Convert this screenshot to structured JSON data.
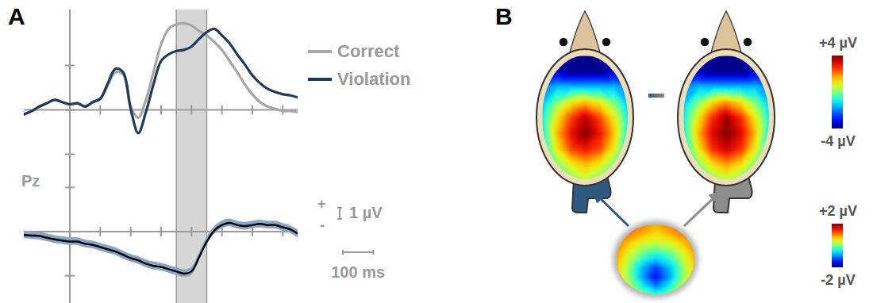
{
  "chart_data": [
    {
      "type": "line",
      "panel": "A",
      "legend": "right",
      "tick_labels": false,
      "x": [
        -150,
        -125,
        -100,
        -75,
        -50,
        -25,
        0,
        25,
        50,
        75,
        100,
        125,
        150,
        175,
        200,
        225,
        250,
        275,
        300,
        325,
        350,
        375,
        400,
        425,
        450,
        475,
        500,
        525,
        550,
        575,
        600,
        625,
        650,
        675,
        700,
        725,
        750
      ],
      "xlim": [
        -150,
        750
      ],
      "ylim": [
        -5.5,
        9
      ],
      "xticks": [
        0,
        100,
        200,
        300,
        400,
        500,
        600,
        700
      ],
      "yticks": [
        -4,
        0,
        4
      ],
      "window": [
        350,
        450
      ],
      "series": [
        {
          "name": "Correct",
          "color": "#a6a6a6",
          "values": [
            -0.4,
            -0.1,
            0.3,
            0.6,
            0.9,
            0.7,
            0.5,
            0.6,
            0.3,
            0.7,
            1.0,
            2.2,
            3.4,
            3.2,
            0.3,
            -0.7,
            0.9,
            3.4,
            5.9,
            7.3,
            7.7,
            7.8,
            7.6,
            7.1,
            6.7,
            6.1,
            5.4,
            4.4,
            3.4,
            2.3,
            1.4,
            0.7,
            0.3,
            0.1,
            -0.1,
            -0.1,
            -0.2
          ]
        },
        {
          "name": "Violation",
          "color": "#1f3a5a",
          "values": [
            -0.4,
            -0.1,
            0.3,
            0.6,
            0.9,
            0.7,
            0.5,
            0.6,
            0.3,
            0.7,
            1.0,
            2.4,
            3.7,
            3.4,
            0.1,
            -2.1,
            -0.2,
            2.3,
            4.4,
            5.0,
            5.3,
            5.4,
            5.7,
            6.4,
            7.0,
            7.3,
            6.7,
            6.0,
            5.0,
            4.1,
            3.1,
            2.4,
            1.9,
            1.6,
            1.4,
            1.3,
            1.1
          ]
        }
      ]
    },
    {
      "type": "line",
      "title": "Pz",
      "tick_labels": false,
      "x": [
        -150,
        -125,
        -100,
        -75,
        -50,
        -25,
        0,
        25,
        50,
        75,
        100,
        125,
        150,
        175,
        200,
        225,
        250,
        275,
        300,
        325,
        350,
        375,
        400,
        425,
        450,
        475,
        500,
        525,
        550,
        575,
        600,
        625,
        650,
        675,
        700,
        725,
        750
      ],
      "xlim": [
        -150,
        750
      ],
      "ylim": [
        -6.5,
        5.5
      ],
      "xticks": [
        0,
        100,
        200,
        300,
        400,
        500,
        600,
        700
      ],
      "yticks": [
        -4,
        0,
        4
      ],
      "window": [
        350,
        450
      ],
      "scale_bar": {
        "y": 1,
        "y_label": "1 µV",
        "x": 100,
        "x_label": "100 ms",
        "plus": "+",
        "minus": "-"
      },
      "series": [
        {
          "color": "#000000",
          "values": [
            -0.3,
            -0.35,
            -0.4,
            -0.55,
            -0.7,
            -0.8,
            -0.9,
            -0.9,
            -1.1,
            -1.2,
            -1.4,
            -1.6,
            -1.8,
            -2.1,
            -2.4,
            -2.6,
            -2.9,
            -3.1,
            -3.2,
            -3.4,
            -3.6,
            -3.8,
            -3.6,
            -2.3,
            -0.9,
            0.1,
            0.6,
            0.8,
            0.6,
            0.5,
            0.6,
            0.7,
            0.6,
            0.6,
            0.4,
            0.2,
            -0.2
          ],
          "error": [
            0.35,
            0.35,
            0.35,
            0.35,
            0.35,
            0.35,
            0.35,
            0.35,
            0.35,
            0.35,
            0.35,
            0.35,
            0.35,
            0.35,
            0.35,
            0.35,
            0.35,
            0.35,
            0.35,
            0.35,
            0.35,
            0.35,
            0.35,
            0.35,
            0.35,
            0.35,
            0.35,
            0.35,
            0.35,
            0.35,
            0.35,
            0.35,
            0.35,
            0.35,
            0.35,
            0.35,
            0.35
          ]
        }
      ]
    },
    {
      "type": "heatmap",
      "panel": "B",
      "color": "#2f5a80",
      "zlim": [
        -4,
        4
      ],
      "cells": [
        [
          -4,
          -4,
          -4,
          -4,
          -4,
          -4,
          -4
        ],
        [
          -3,
          -3.5,
          -4,
          -4,
          -4,
          -3.5,
          -3
        ],
        [
          -2,
          -1.5,
          -1.5,
          -1.5,
          -1.5,
          -1.5,
          -2
        ],
        [
          -1.5,
          0,
          1,
          1.5,
          1,
          0,
          -1.5
        ],
        [
          -1,
          1,
          2.5,
          3.5,
          2.5,
          1,
          -1
        ],
        [
          -1,
          1.5,
          3,
          4,
          3,
          1.5,
          -1
        ],
        [
          -1,
          1,
          2.5,
          3,
          2.5,
          1,
          -1
        ],
        [
          -1.5,
          0,
          1,
          1.5,
          1,
          0,
          -1.5
        ],
        [
          -2,
          -1,
          0,
          0.5,
          0,
          -1,
          -2
        ]
      ]
    },
    {
      "type": "heatmap",
      "color": "#8c8c8c",
      "zlim": [
        -4,
        4
      ],
      "zticks": [
        {
          "value": 4,
          "label": "+4 µV"
        },
        {
          "value": -4,
          "label": "-4 µV"
        }
      ],
      "cells": [
        [
          -4,
          -4,
          -4,
          -4,
          -4,
          -4,
          -4
        ],
        [
          -3,
          -3.5,
          -4,
          -4,
          -4,
          -3.5,
          -3
        ],
        [
          -2,
          -1.5,
          -1.5,
          -1.5,
          -1.5,
          -1.5,
          -2
        ],
        [
          -1.5,
          0,
          1.2,
          1.8,
          1.2,
          0,
          -1.5
        ],
        [
          -1,
          1,
          2.7,
          3.8,
          2.7,
          1,
          -1
        ],
        [
          -1,
          1.5,
          3.2,
          4,
          3.2,
          1.5,
          -1
        ],
        [
          -1,
          1,
          2.7,
          3.4,
          2.7,
          1,
          -1
        ],
        [
          -1.5,
          0,
          1.2,
          1.8,
          1.2,
          0,
          -1.5
        ],
        [
          -2,
          -1,
          0,
          0.5,
          0,
          -1,
          -2
        ]
      ]
    },
    {
      "type": "heatmap",
      "zlim": [
        -2,
        2
      ],
      "zticks": [
        {
          "value": 2,
          "label": "+2 µV"
        },
        {
          "value": -2,
          "label": "-2 µV"
        }
      ],
      "cells": [
        [
          1.5,
          2,
          1,
          0.8,
          1,
          2,
          1.5
        ],
        [
          1.2,
          1,
          0.8,
          0.6,
          0.8,
          1,
          1.2
        ],
        [
          1,
          0.7,
          0.4,
          0.3,
          0.4,
          0.7,
          1
        ],
        [
          0.9,
          0.4,
          0,
          -0.2,
          0,
          0.4,
          0.9
        ],
        [
          0.8,
          0.2,
          -0.4,
          -0.7,
          -0.4,
          0.2,
          0.8
        ],
        [
          0.7,
          0,
          -0.8,
          -1.3,
          -0.8,
          0,
          0.7
        ],
        [
          0.7,
          0,
          -0.9,
          -1.5,
          -0.9,
          0,
          0.7
        ],
        [
          0.8,
          0.2,
          -0.5,
          -1,
          -0.5,
          0.2,
          0.8
        ],
        [
          1,
          0.5,
          0,
          -0.3,
          0,
          0.5,
          1
        ]
      ]
    }
  ]
}
